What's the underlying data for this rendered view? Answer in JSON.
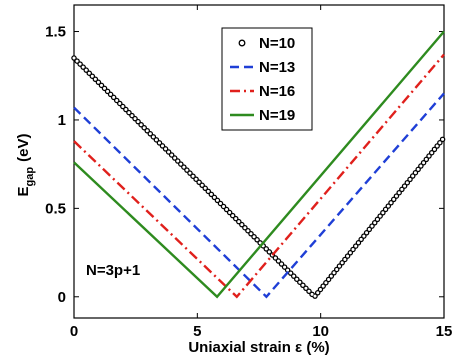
{
  "chart_data": {
    "type": "line",
    "xlabel": "Uniaxial strain ε (%)",
    "ylabel": {
      "main": "E",
      "sub": "gap",
      "unit": "(eV)"
    },
    "annotation": "N=3p+1",
    "xlim": [
      0,
      15
    ],
    "xticks": [
      0,
      5,
      10,
      15
    ],
    "ylim": [
      -0.12,
      1.65
    ],
    "yticks": [
      0,
      0.5,
      1,
      1.5
    ],
    "legend": "top-center",
    "series": [
      {
        "name": "N=10",
        "color": "#000000",
        "style": "markers",
        "x": [
          0,
          9.75,
          15
        ],
        "values": [
          1.35,
          0,
          0.9
        ]
      },
      {
        "name": "N=13",
        "color": "#1f3fd6",
        "style": "dashed",
        "x": [
          0,
          7.8,
          15
        ],
        "values": [
          1.07,
          0,
          1.15
        ]
      },
      {
        "name": "N=16",
        "color": "#e0201c",
        "style": "dashdot",
        "x": [
          0,
          6.6,
          15
        ],
        "values": [
          0.88,
          0,
          1.37
        ]
      },
      {
        "name": "N=19",
        "color": "#2e8b1f",
        "style": "solid",
        "x": [
          0,
          5.8,
          15
        ],
        "values": [
          0.76,
          0,
          1.5
        ]
      }
    ]
  }
}
